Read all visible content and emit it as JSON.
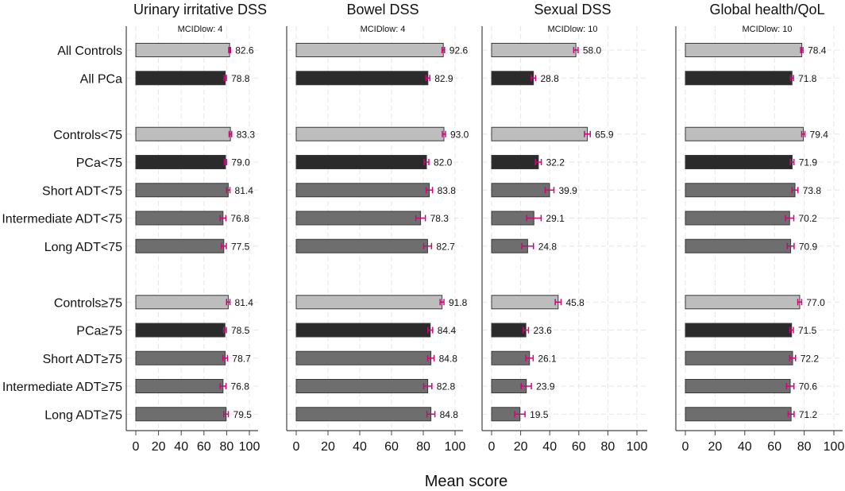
{
  "chart_data": {
    "type": "bar",
    "xlabel": "Mean score",
    "xlim": [
      0,
      100
    ],
    "xticks": [
      0,
      20,
      40,
      60,
      80,
      100
    ],
    "colors": {
      "controls": "#bdbdbd",
      "pca": "#2b2b2b",
      "adt": "#6e6e6e",
      "error_bar": "#d6007e",
      "grid": "#e6e6e6"
    },
    "categories": [
      "All Controls",
      "All PCa",
      "",
      "Controls<75",
      "PCa<75",
      "Short ADT<75",
      "Intermediate ADT<75",
      "Long ADT<75",
      "",
      "Controls≥75",
      "PCa≥75",
      "Short ADT≥75",
      "Intermediate ADT≥75",
      "Long ADT≥75"
    ],
    "groups": [
      "controls",
      "pca",
      "",
      "controls",
      "pca",
      "adt",
      "adt",
      "adt",
      "",
      "controls",
      "pca",
      "adt",
      "adt",
      "adt"
    ],
    "panels": [
      {
        "title": "Urinary irritative DSS",
        "subtitle": "MCIDlow: 4",
        "values": [
          82.6,
          78.8,
          null,
          83.3,
          79.0,
          81.4,
          76.8,
          77.5,
          null,
          81.4,
          78.5,
          78.7,
          76.8,
          79.5
        ],
        "ci": [
          0.8,
          1.0,
          null,
          1.1,
          1.0,
          1.5,
          2.5,
          2.2,
          null,
          1.5,
          1.2,
          2.0,
          2.6,
          2.0
        ]
      },
      {
        "title": "Bowel DSS",
        "subtitle": "MCIDlow: 4",
        "values": [
          92.6,
          82.9,
          null,
          93.0,
          82.0,
          83.8,
          78.3,
          82.7,
          null,
          91.8,
          84.4,
          84.8,
          82.8,
          84.8
        ],
        "ci": [
          0.8,
          1.2,
          null,
          1.0,
          1.5,
          2.0,
          3.0,
          2.5,
          null,
          1.2,
          1.5,
          2.0,
          2.6,
          2.5
        ]
      },
      {
        "title": "Sexual DSS",
        "subtitle": "MCIDlow: 10",
        "values": [
          58.0,
          28.8,
          null,
          65.9,
          32.2,
          39.9,
          29.1,
          24.8,
          null,
          45.8,
          23.6,
          26.1,
          23.9,
          19.5
        ],
        "ci": [
          1.5,
          1.5,
          null,
          2.0,
          2.0,
          3.0,
          5.0,
          4.0,
          null,
          2.0,
          1.8,
          2.5,
          3.5,
          3.5
        ]
      },
      {
        "title": "Global health/QoL",
        "subtitle": "MCIDlow: 10",
        "values": [
          78.4,
          71.8,
          null,
          79.4,
          71.9,
          73.8,
          70.2,
          70.9,
          null,
          77.0,
          71.5,
          72.2,
          70.6,
          71.2
        ],
        "ci": [
          0.8,
          1.0,
          null,
          1.1,
          1.2,
          2.0,
          2.8,
          2.3,
          null,
          1.3,
          1.2,
          2.0,
          2.5,
          2.0
        ]
      }
    ]
  }
}
